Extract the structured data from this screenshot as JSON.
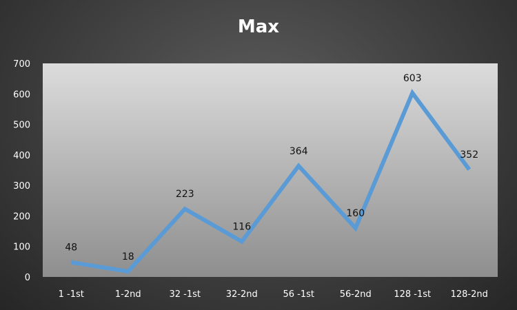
{
  "chart_data": {
    "type": "line",
    "title": "Max",
    "xlabel": "",
    "ylabel": "",
    "categories": [
      "1 -1st",
      "1-2nd",
      "32 -1st",
      "32-2nd",
      "56 -1st",
      "56-2nd",
      "128 -1st",
      "128-2nd"
    ],
    "series": [
      {
        "values": [
          48,
          18,
          223,
          116,
          364,
          160,
          603,
          352
        ]
      }
    ],
    "ylim": [
      0,
      700
    ],
    "yticks": [
      "0",
      "100",
      "200",
      "300",
      "400",
      "500",
      "600",
      "700"
    ],
    "data_labels": [
      "48",
      "18",
      "223",
      "116",
      "364",
      "160",
      "603",
      "352"
    ],
    "grid": false,
    "legend": "none",
    "colors": {
      "line": "#5b9bd5",
      "plot_area_top": "#dcdcdc",
      "plot_area_bottom": "#8e8e8e",
      "text_light": "#ffffff",
      "text_dark": "#111111"
    }
  }
}
